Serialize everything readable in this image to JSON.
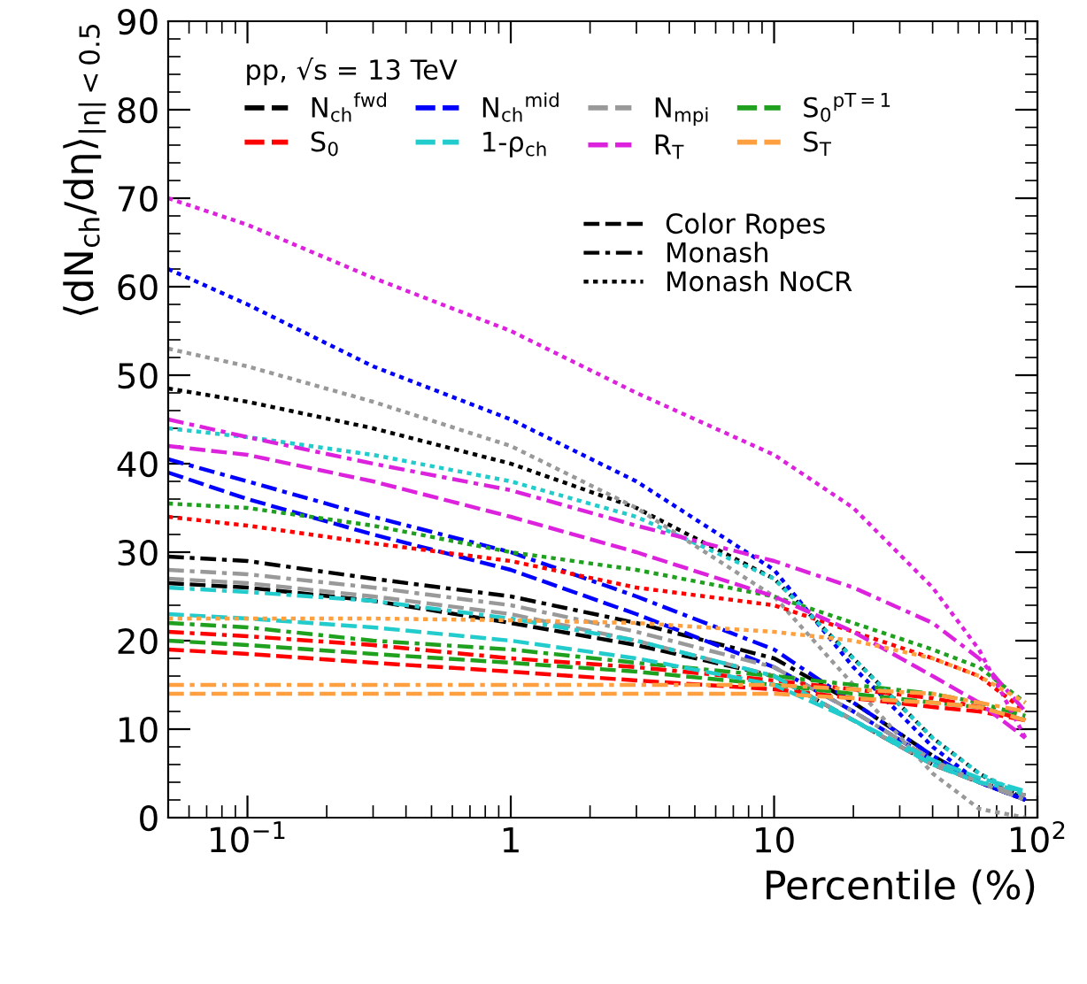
{
  "chart_data": {
    "type": "line",
    "xlabel": "Percentile (%)",
    "ylabel": "⟨dN$_{ch}$/dη⟩$_{|η|<0.5}$",
    "legend_title": "pp, √s = 13 TeV",
    "legend": "top left",
    "log": "x",
    "grid": false,
    "annotations": [
      "Color Ropes",
      "Monash",
      "Monash NoCR"
    ],
    "x": [
      0.05,
      0.1,
      0.3,
      1,
      3,
      10,
      20,
      40,
      60,
      90
    ],
    "xlim": [
      0.05,
      100
    ],
    "xticks": [
      {
        "value": 0.1,
        "label": "10$^{−1}$"
      },
      1,
      10,
      {
        "value": 100,
        "label": "10$^{2}$"
      }
    ],
    "ylim": [
      0,
      90
    ],
    "yticks": [
      0,
      10,
      20,
      30,
      40,
      50,
      60,
      70,
      80,
      90
    ],
    "series": [
      {
        "name": "N$_{ch}$$^{fwd}$",
        "color": "#000000",
        "line_style": "dashed",
        "values": [
          26.5,
          26,
          24.5,
          22,
          19.5,
          16,
          11,
          6,
          4,
          2.5
        ]
      },
      {
        "color": "#000000",
        "line_style": "dashdot",
        "values": [
          29.5,
          29,
          27,
          25,
          22,
          18,
          13,
          7,
          4,
          2
        ]
      },
      {
        "color": "#000000",
        "line_style": "dotted",
        "values": [
          48.5,
          47,
          44,
          40,
          35,
          27,
          18,
          9,
          5,
          2
        ]
      },
      {
        "name": "N$_{ch}$$^{mid}$",
        "color": "#0000ff",
        "line_style": "dashed",
        "values": [
          39,
          36,
          32,
          28,
          23,
          17,
          12,
          6.5,
          4,
          2
        ]
      },
      {
        "color": "#0000ff",
        "line_style": "dashdot",
        "values": [
          40.5,
          38,
          34,
          30,
          25,
          19,
          13,
          7,
          4,
          2
        ]
      },
      {
        "color": "#0000ff",
        "line_style": "dotted",
        "values": [
          62,
          58,
          51,
          45,
          38,
          28,
          17,
          8,
          4,
          2
        ]
      },
      {
        "name": "N$_{mpi}$",
        "color": "#999999",
        "line_style": "dashed",
        "values": [
          27,
          26.5,
          25,
          23,
          20,
          16,
          11,
          6,
          4,
          2.5
        ]
      },
      {
        "color": "#999999",
        "line_style": "dashdot",
        "values": [
          28,
          27.5,
          26,
          24,
          21,
          17,
          12,
          6.5,
          4,
          2
        ]
      },
      {
        "color": "#999999",
        "line_style": "dotted",
        "values": [
          53,
          51,
          47,
          42,
          35,
          25,
          15,
          5,
          1,
          0
        ]
      },
      {
        "name": "S$_{0}$$^{pT=1}$",
        "color": "#1fa01f",
        "line_style": "dashed",
        "values": [
          20,
          19.5,
          18.5,
          17.5,
          16.5,
          15,
          14,
          13,
          12.5,
          11
        ]
      },
      {
        "color": "#1fa01f",
        "line_style": "dashdot",
        "values": [
          22,
          21.5,
          20,
          19,
          17.5,
          16,
          15,
          14,
          13,
          11.5
        ]
      },
      {
        "color": "#1fa01f",
        "line_style": "dotted",
        "values": [
          35.5,
          35,
          33,
          30,
          28,
          25,
          22,
          19,
          17,
          13
        ]
      },
      {
        "name": "S$_{0}$",
        "color": "#ff0000",
        "line_style": "dashed",
        "values": [
          19,
          18.5,
          17.5,
          16.5,
          15.5,
          14.5,
          13.5,
          12.5,
          12,
          11
        ]
      },
      {
        "color": "#ff0000",
        "line_style": "dashdot",
        "values": [
          21,
          20.5,
          19.5,
          18,
          17,
          15.5,
          14.5,
          13.5,
          12.5,
          11
        ]
      },
      {
        "color": "#ff0000",
        "line_style": "dotted",
        "values": [
          34,
          33,
          31,
          29,
          26,
          24,
          21,
          18,
          16,
          12
        ]
      },
      {
        "name": "1-ρ$_{ch}$",
        "color": "#22cccc",
        "line_style": "dashed",
        "values": [
          23,
          22.5,
          21.5,
          20,
          18,
          15,
          11,
          6.5,
          4.5,
          3
        ]
      },
      {
        "color": "#22cccc",
        "line_style": "dashdot",
        "values": [
          26,
          25.5,
          24.5,
          22.5,
          20,
          16,
          11,
          6,
          4,
          3
        ]
      },
      {
        "color": "#22cccc",
        "line_style": "dotted",
        "values": [
          44,
          43,
          41,
          38,
          34,
          27,
          18,
          9,
          5,
          2.5
        ]
      },
      {
        "name": "R$_{T}$",
        "color": "#dd22dd",
        "line_style": "dashed",
        "values": [
          42,
          41,
          38,
          34,
          30,
          25,
          21,
          16,
          13,
          9
        ]
      },
      {
        "color": "#dd22dd",
        "line_style": "dashdot",
        "values": [
          45,
          43,
          40,
          37,
          33,
          29,
          26,
          22,
          18,
          12
        ]
      },
      {
        "color": "#dd22dd",
        "line_style": "dotted",
        "values": [
          70,
          67,
          61,
          55,
          48,
          41,
          35,
          26,
          19,
          9
        ]
      },
      {
        "name": "S$_{T}$",
        "color": "#ffa040",
        "line_style": "dashed",
        "values": [
          14,
          14,
          14,
          14,
          14,
          14,
          13.5,
          13,
          12.5,
          11
        ]
      },
      {
        "color": "#ffa040",
        "line_style": "dashdot",
        "values": [
          15,
          15,
          15,
          15,
          15,
          15,
          14.5,
          14,
          13,
          12
        ]
      },
      {
        "color": "#ffa040",
        "line_style": "dotted",
        "values": [
          22.5,
          22.5,
          22.5,
          22.3,
          22,
          21,
          20,
          18,
          16,
          13
        ]
      }
    ]
  }
}
